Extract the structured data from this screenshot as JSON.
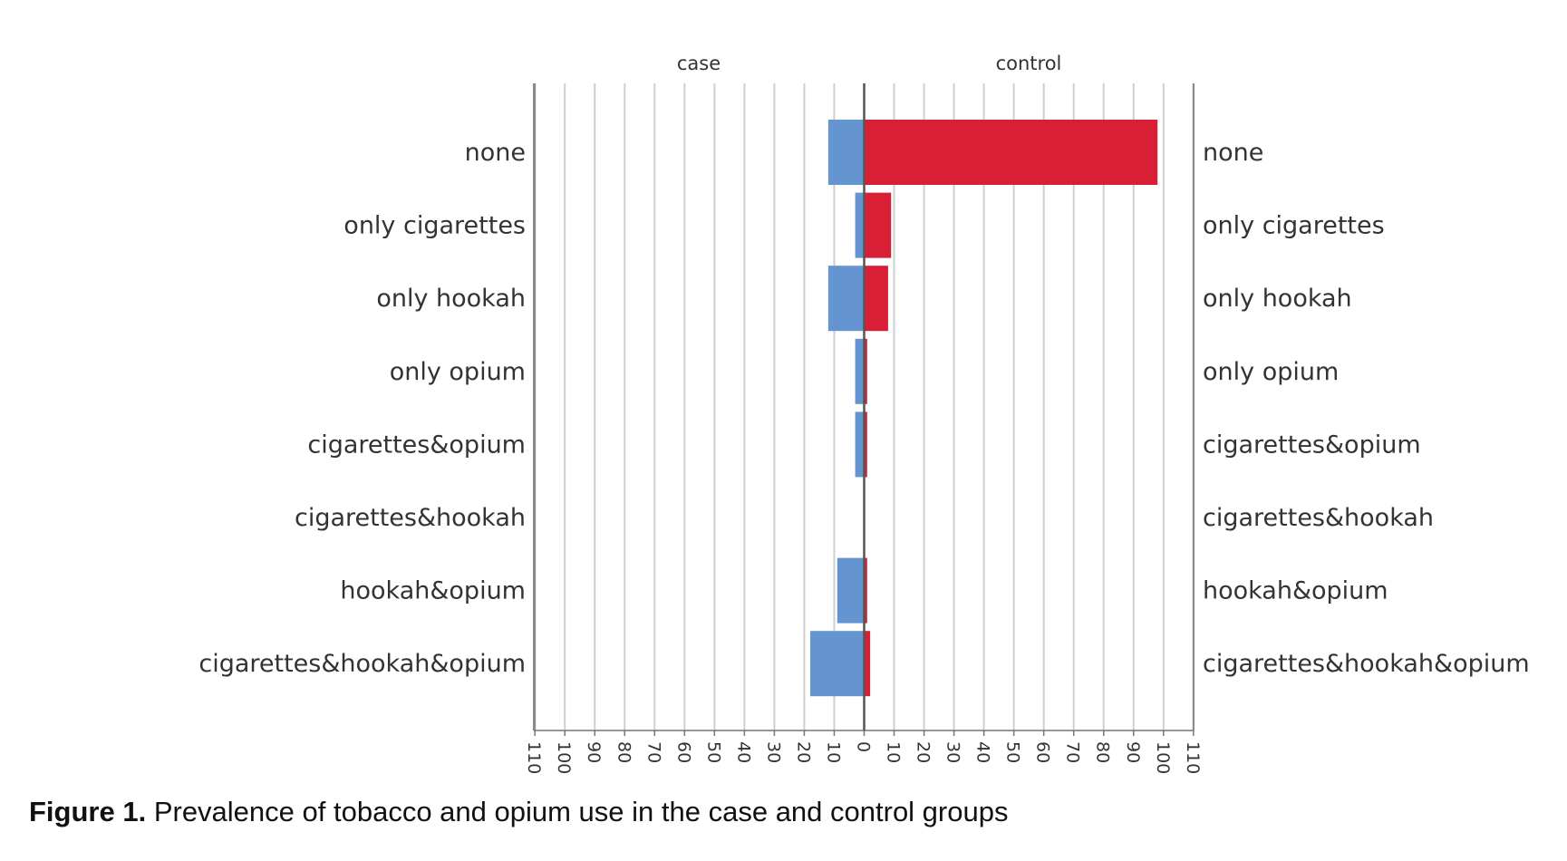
{
  "chart_data": {
    "type": "bar",
    "orientation": "horizontal",
    "layout": "back-to-back",
    "panels": [
      "case",
      "control"
    ],
    "categories": [
      "none",
      "only cigarettes",
      "only hookah",
      "only opium",
      "cigarettes&opium",
      "cigarettes&hookah",
      "hookah&opium",
      "cigarettes&hookah&opium"
    ],
    "series": [
      {
        "name": "case",
        "values": [
          12,
          3,
          12,
          3,
          3,
          0,
          9,
          18
        ],
        "color": "#6495d0"
      },
      {
        "name": "control",
        "values": [
          98,
          9,
          8,
          1,
          1,
          0,
          1,
          2
        ],
        "color": "#d91f36"
      }
    ],
    "xlim": [
      0,
      110
    ],
    "ticks": [
      110,
      100,
      90,
      80,
      70,
      60,
      50,
      40,
      30,
      20,
      10,
      0,
      10,
      20,
      30,
      40,
      50,
      60,
      70,
      80,
      90,
      100,
      110
    ],
    "grid": true,
    "title": "",
    "xlabel": "",
    "ylabel": ""
  },
  "caption": {
    "label": "Figure 1.",
    "text": " Prevalence of tobacco and opium use in the case and control groups"
  }
}
